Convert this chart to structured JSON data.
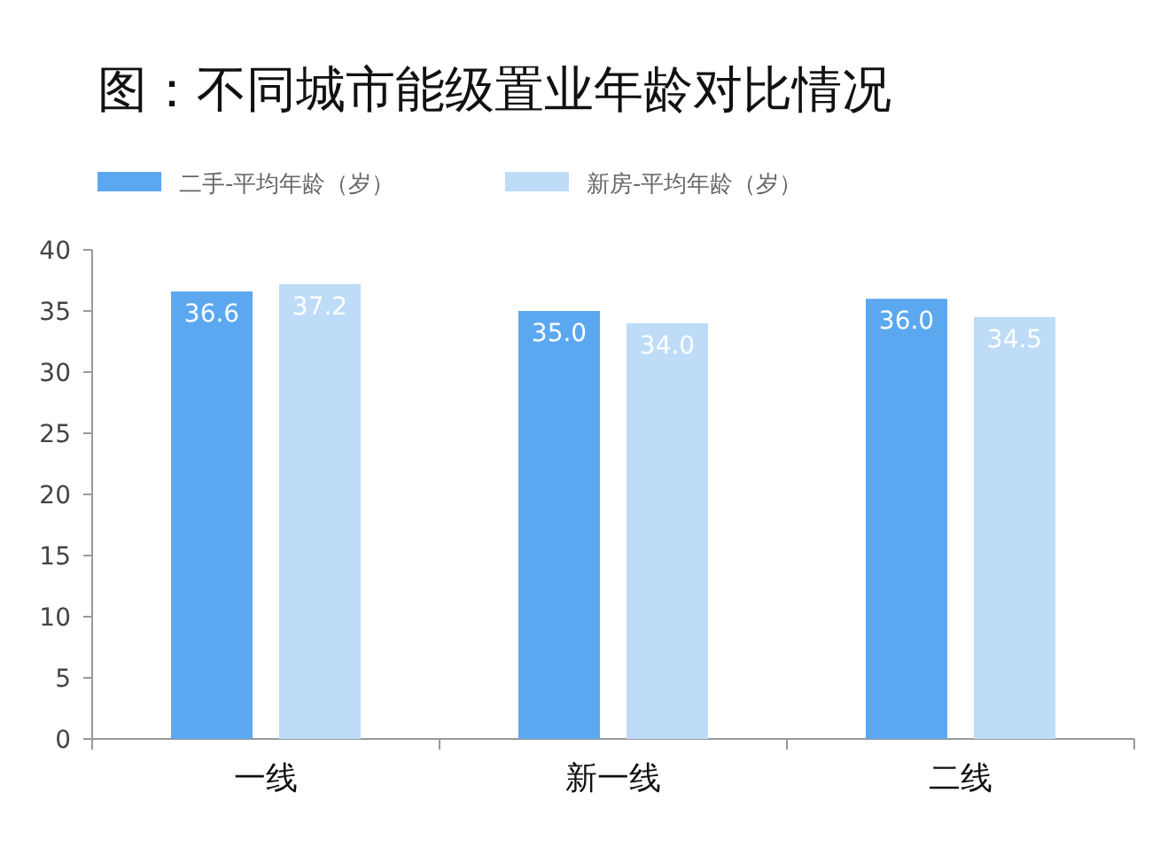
{
  "chart_data": {
    "type": "bar",
    "title": "图：不同城市能级置业年龄对比情况",
    "categories": [
      "一线",
      "新一线",
      "二线"
    ],
    "series": [
      {
        "name": "二手-平均年龄（岁）",
        "color": "#5ba8f0",
        "values": [
          36.6,
          35.0,
          36.0
        ],
        "value_labels": [
          "36.6",
          "35.0",
          "36.0"
        ]
      },
      {
        "name": "新房-平均年龄（岁）",
        "color": "#bedcf8",
        "values": [
          37.2,
          34.0,
          34.5
        ],
        "value_labels": [
          "37.2",
          "34.0",
          "34.5"
        ]
      }
    ],
    "ylim": [
      0,
      40
    ],
    "yticks": [
      0,
      5,
      10,
      15,
      20,
      25,
      30,
      35,
      40
    ],
    "legend": "top left",
    "grid": false
  }
}
